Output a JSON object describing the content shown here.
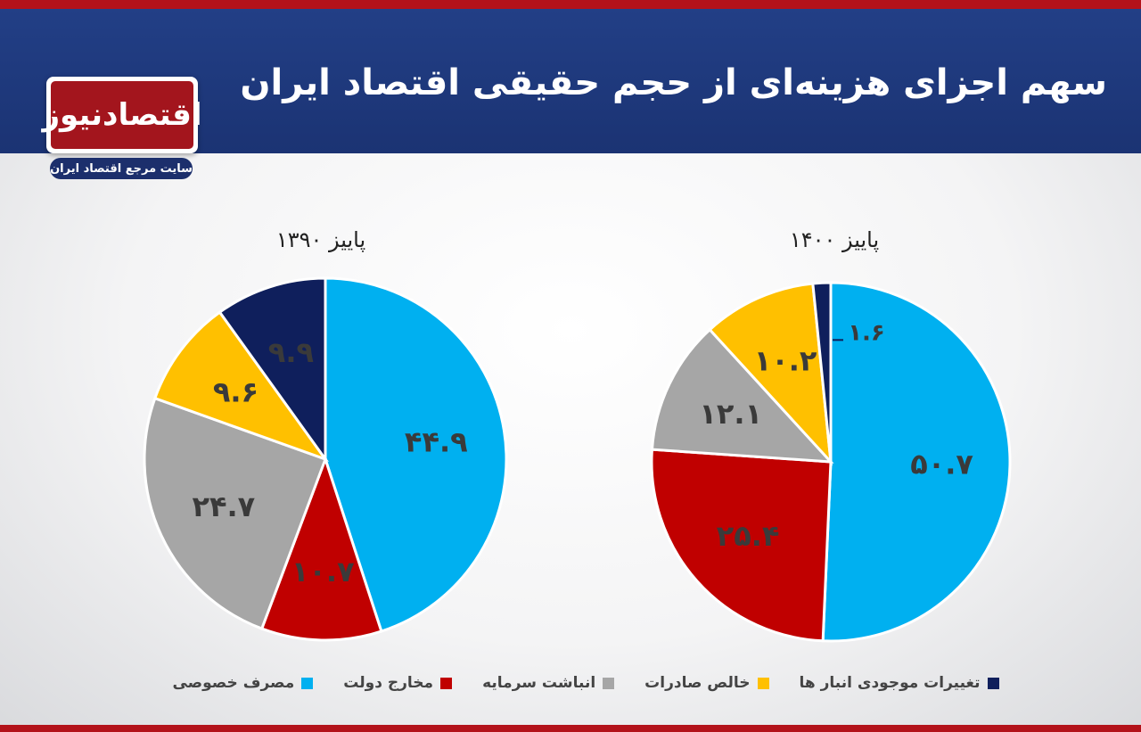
{
  "header": {
    "title": "سهم اجزای هزینه‌ای از حجم حقیقی اقتصاد ایران",
    "logo_text": "اقتصادنیوز",
    "logo_tagline": "سایت مرجع اقتصاد ایران"
  },
  "colors": {
    "header_bg": "#1f3a80",
    "accent_red": "#b3121a",
    "private_consumption": "#00b0f0",
    "government": "#c00000",
    "capital": "#a6a6a6",
    "net_exports": "#ffc000",
    "inventory": "#0f1f5c"
  },
  "legend": [
    {
      "label": "مصرف خصوصی",
      "color": "#00b0f0"
    },
    {
      "label": "مخارج دولت",
      "color": "#c00000"
    },
    {
      "label": "انباشت سرمایه",
      "color": "#a6a6a6"
    },
    {
      "label": "خالص صادرات",
      "color": "#ffc000"
    },
    {
      "label": "تغییرات موجودی انبار ها",
      "color": "#0f1f5c"
    }
  ],
  "chart_data": [
    {
      "type": "pie",
      "title": "پاییز ۱۳۹۰",
      "slices": [
        {
          "name": "مصرف خصوصی",
          "value": 44.9,
          "label": "۴۴.۹",
          "color": "#00b0f0"
        },
        {
          "name": "مخارج دولت",
          "value": 10.7,
          "label": "۱۰.۷",
          "color": "#c00000"
        },
        {
          "name": "انباشت سرمایه",
          "value": 24.7,
          "label": "۲۴.۷",
          "color": "#a6a6a6"
        },
        {
          "name": "خالص صادرات",
          "value": 9.6,
          "label": "۹.۶",
          "color": "#ffc000"
        },
        {
          "name": "تغییرات موجودی انبار ها",
          "value": 9.9,
          "label": "۹.۹",
          "color": "#0f1f5c"
        }
      ]
    },
    {
      "type": "pie",
      "title": "پاییز ۱۴۰۰",
      "slices": [
        {
          "name": "مصرف خصوصی",
          "value": 50.7,
          "label": "۵۰.۷",
          "color": "#00b0f0"
        },
        {
          "name": "مخارج دولت",
          "value": 25.4,
          "label": "۲۵.۴",
          "color": "#c00000"
        },
        {
          "name": "انباشت سرمایه",
          "value": 12.1,
          "label": "۱۲.۱",
          "color": "#a6a6a6"
        },
        {
          "name": "خالص صادرات",
          "value": 10.2,
          "label": "۱۰.۲",
          "color": "#ffc000"
        },
        {
          "name": "تغییرات موجودی انبار ها",
          "value": 1.6,
          "label": "۱.۶",
          "color": "#0f1f5c"
        }
      ]
    }
  ]
}
